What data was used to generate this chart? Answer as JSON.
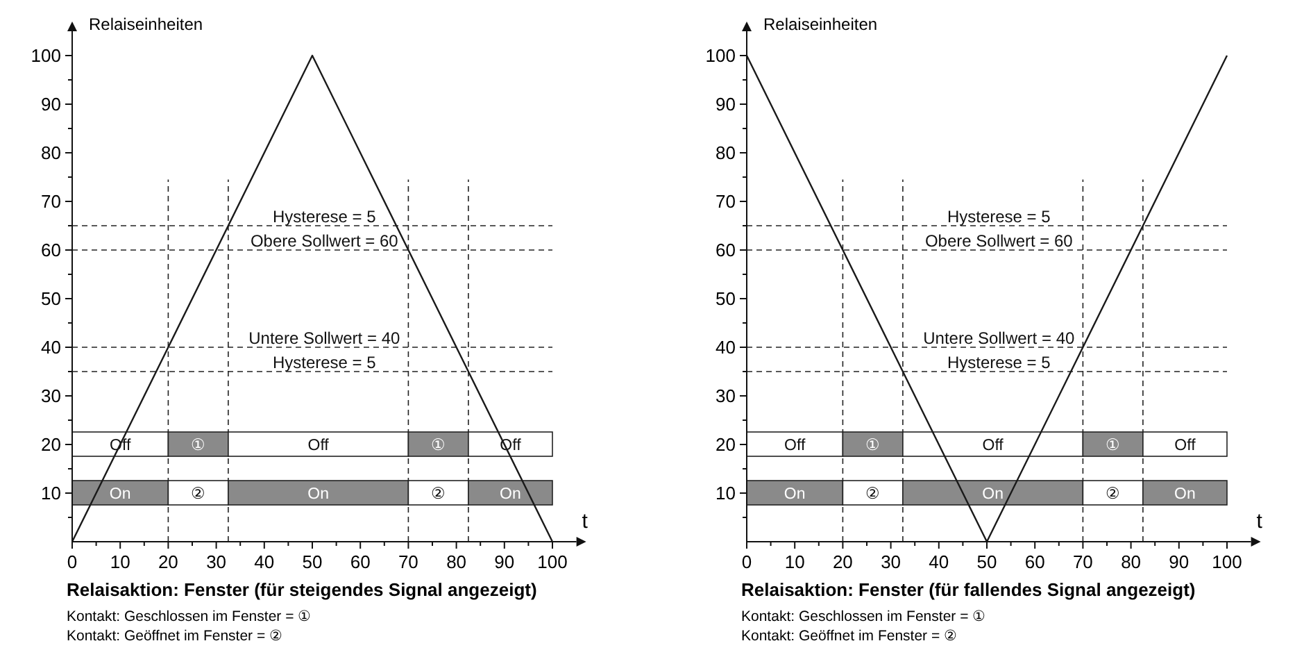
{
  "chart_data": [
    {
      "type": "line",
      "title": "Relaisaktion: Fenster (für steigendes Signal angezeigt)",
      "xlabel": "t",
      "ylabel": "Relaiseinheiten",
      "xlim": [
        0,
        105
      ],
      "ylim": [
        0,
        105
      ],
      "xticks": [
        0,
        {
          "value": 5,
          "label": null
        },
        10,
        {
          "value": 15,
          "label": null
        },
        20,
        {
          "value": 25,
          "label": null
        },
        30,
        {
          "value": 35,
          "label": null
        },
        40,
        {
          "value": 45,
          "label": null
        },
        50,
        {
          "value": 55,
          "label": null
        },
        60,
        {
          "value": 65,
          "label": null
        },
        70,
        {
          "value": 75,
          "label": null
        },
        80,
        {
          "value": 85,
          "label": null
        },
        90,
        {
          "value": 95,
          "label": null
        },
        100
      ],
      "yticks": [
        {
          "value": 5,
          "label": null
        },
        10,
        {
          "value": 15,
          "label": null
        },
        20,
        {
          "value": 25,
          "label": null
        },
        30,
        {
          "value": 35,
          "label": null
        },
        40,
        {
          "value": 45,
          "label": null
        },
        50,
        {
          "value": 55,
          "label": null
        },
        60,
        {
          "value": 65,
          "label": null
        },
        70,
        {
          "value": 75,
          "label": null
        },
        80,
        {
          "value": 85,
          "label": null
        },
        90,
        {
          "value": 95,
          "label": null
        },
        100
      ],
      "grid": false,
      "marker": "none",
      "line_style": "solid",
      "series": [
        {
          "color": "#1a1a1a",
          "x": [
            0,
            50,
            100
          ],
          "values": [
            0,
            100,
            0
          ]
        }
      ],
      "ref_lines": [
        {
          "axis": "y",
          "value": 65,
          "label": null,
          "line_style": "dashed"
        },
        {
          "axis": "y",
          "value": 35,
          "label": null,
          "line_style": "dashed"
        },
        {
          "axis": "y",
          "value": 60,
          "label": "Obere Sollwert = 60",
          "line_style": "dashed"
        },
        {
          "axis": "y",
          "value": 40,
          "label": "Untere Sollwert = 40",
          "line_style": "dashed"
        },
        {
          "axis": "x",
          "value": 20,
          "label": null,
          "line_style": "dashed"
        },
        {
          "axis": "x",
          "value": 32.5,
          "label": null,
          "line_style": "dashed"
        },
        {
          "axis": "x",
          "value": 70,
          "label": null,
          "line_style": "dashed"
        },
        {
          "axis": "x",
          "value": 82.5,
          "label": null,
          "line_style": "dashed"
        }
      ],
      "bands": [
        {
          "axis": "x",
          "from": 0,
          "to": 20,
          "label": "Off",
          "color": "#ffffff"
        },
        {
          "axis": "x",
          "from": 20,
          "to": 32.5,
          "label": "①",
          "color": "#8a8a8a"
        },
        {
          "axis": "x",
          "from": 32.5,
          "to": 70,
          "label": "Off",
          "color": "#ffffff"
        },
        {
          "axis": "x",
          "from": 70,
          "to": 82.5,
          "label": "①",
          "color": "#8a8a8a"
        },
        {
          "axis": "x",
          "from": 82.5,
          "to": 100,
          "label": "Off",
          "color": "#ffffff"
        },
        {
          "axis": "x",
          "from": 0,
          "to": 20,
          "label": "On",
          "color": "#8a8a8a"
        },
        {
          "axis": "x",
          "from": 20,
          "to": 32.5,
          "label": "②",
          "color": "#ffffff"
        },
        {
          "axis": "x",
          "from": 32.5,
          "to": 70,
          "label": "On",
          "color": "#8a8a8a"
        },
        {
          "axis": "x",
          "from": 70,
          "to": 82.5,
          "label": "②",
          "color": "#ffffff"
        },
        {
          "axis": "x",
          "from": 82.5,
          "to": 100,
          "label": "On",
          "color": "#8a8a8a"
        }
      ],
      "annotations": [
        {
          "text": "Hysterese = 5",
          "y": 65
        },
        {
          "text": "Hysterese = 5",
          "y": 35
        },
        "Kontakt: Geschlossen im Fenster = ①",
        "Kontakt: Geöffnet im Fenster = ②"
      ]
    },
    {
      "type": "line",
      "title": "Relaisaktion: Fenster (für fallendes Signal angezeigt)",
      "xlabel": "t",
      "ylabel": "Relaiseinheiten",
      "xlim": [
        0,
        105
      ],
      "ylim": [
        0,
        105
      ],
      "xticks": [
        0,
        {
          "value": 5,
          "label": null
        },
        10,
        {
          "value": 15,
          "label": null
        },
        20,
        {
          "value": 25,
          "label": null
        },
        30,
        {
          "value": 35,
          "label": null
        },
        40,
        {
          "value": 45,
          "label": null
        },
        50,
        {
          "value": 55,
          "label": null
        },
        60,
        {
          "value": 65,
          "label": null
        },
        70,
        {
          "value": 75,
          "label": null
        },
        80,
        {
          "value": 85,
          "label": null
        },
        90,
        {
          "value": 95,
          "label": null
        },
        100
      ],
      "yticks": [
        {
          "value": 5,
          "label": null
        },
        10,
        {
          "value": 15,
          "label": null
        },
        20,
        {
          "value": 25,
          "label": null
        },
        30,
        {
          "value": 35,
          "label": null
        },
        40,
        {
          "value": 45,
          "label": null
        },
        50,
        {
          "value": 55,
          "label": null
        },
        60,
        {
          "value": 65,
          "label": null
        },
        70,
        {
          "value": 75,
          "label": null
        },
        80,
        {
          "value": 85,
          "label": null
        },
        90,
        {
          "value": 95,
          "label": null
        },
        100
      ],
      "grid": false,
      "marker": "none",
      "line_style": "solid",
      "series": [
        {
          "color": "#1a1a1a",
          "x": [
            0,
            50,
            100
          ],
          "values": [
            100,
            0,
            100
          ]
        }
      ],
      "ref_lines": [
        {
          "axis": "y",
          "value": 65,
          "label": null,
          "line_style": "dashed"
        },
        {
          "axis": "y",
          "value": 35,
          "label": null,
          "line_style": "dashed"
        },
        {
          "axis": "y",
          "value": 60,
          "label": "Obere Sollwert = 60",
          "line_style": "dashed"
        },
        {
          "axis": "y",
          "value": 40,
          "label": "Untere Sollwert = 40",
          "line_style": "dashed"
        },
        {
          "axis": "x",
          "value": 20,
          "label": null,
          "line_style": "dashed"
        },
        {
          "axis": "x",
          "value": 32.5,
          "label": null,
          "line_style": "dashed"
        },
        {
          "axis": "x",
          "value": 70,
          "label": null,
          "line_style": "dashed"
        },
        {
          "axis": "x",
          "value": 82.5,
          "label": null,
          "line_style": "dashed"
        }
      ],
      "bands": [
        {
          "axis": "x",
          "from": 0,
          "to": 20,
          "label": "Off",
          "color": "#ffffff"
        },
        {
          "axis": "x",
          "from": 20,
          "to": 32.5,
          "label": "①",
          "color": "#8a8a8a"
        },
        {
          "axis": "x",
          "from": 32.5,
          "to": 70,
          "label": "Off",
          "color": "#ffffff"
        },
        {
          "axis": "x",
          "from": 70,
          "to": 82.5,
          "label": "①",
          "color": "#8a8a8a"
        },
        {
          "axis": "x",
          "from": 82.5,
          "to": 100,
          "label": "Off",
          "color": "#ffffff"
        },
        {
          "axis": "x",
          "from": 0,
          "to": 20,
          "label": "On",
          "color": "#8a8a8a"
        },
        {
          "axis": "x",
          "from": 20,
          "to": 32.5,
          "label": "②",
          "color": "#ffffff"
        },
        {
          "axis": "x",
          "from": 32.5,
          "to": 70,
          "label": "On",
          "color": "#8a8a8a"
        },
        {
          "axis": "x",
          "from": 70,
          "to": 82.5,
          "label": "②",
          "color": "#ffffff"
        },
        {
          "axis": "x",
          "from": 82.5,
          "to": 100,
          "label": "On",
          "color": "#8a8a8a"
        }
      ],
      "annotations": [
        {
          "text": "Hysterese = 5",
          "y": 65
        },
        {
          "text": "Hysterese = 5",
          "y": 35
        },
        "Kontakt: Geschlossen im Fenster = ①",
        "Kontakt: Geöffnet im Fenster = ②"
      ]
    }
  ]
}
